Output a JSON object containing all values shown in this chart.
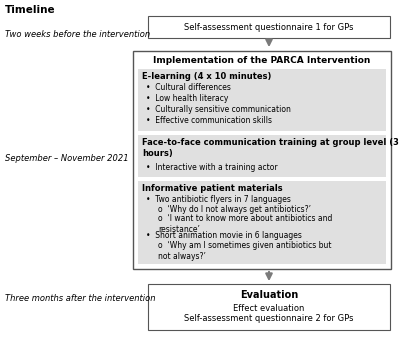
{
  "title": "Timeline",
  "label_left_1": "Two weeks before the intervention",
  "label_left_2": "September – November 2021",
  "label_left_3": "Three months after the intervention",
  "box_top_text": "Self-assessment questionnaire 1 for GPs",
  "box_main_title": "Implementation of the PARCA Intervention",
  "section1_title": "E-learning (4 x 10 minutes)",
  "section1_bullets": [
    "Cultural differences",
    "Low health literacy",
    "Culturally sensitive communication",
    "Effective communication skills"
  ],
  "section2_title": "Face-to-face communication training at group level (3\nhours)",
  "section2_bullets": [
    "Interactive with a training actor"
  ],
  "section3_title": "Informative patient materials",
  "section3_b1": "Two antibiotic flyers in 7 languages",
  "section3_sub1a": "‘Why do I not always get antibiotics?’",
  "section3_sub1b": "‘I want to know more about antibiotics and\nresistance’",
  "section3_b2": "Short animation movie in 6 languages",
  "section3_sub2": "‘Why am I sometimes given antibiotics but\nnot always?’",
  "box_bottom_title": "Evaluation",
  "box_bottom_line1": "Effect evaluation",
  "box_bottom_line2": "Self-assessment questionnaire 2 for GPs",
  "bg_color": "#ffffff",
  "box_border_color": "#555555",
  "section_bg_color": "#e0e0e0",
  "arrow_color": "#7a7a7a",
  "text_color": "#000000"
}
